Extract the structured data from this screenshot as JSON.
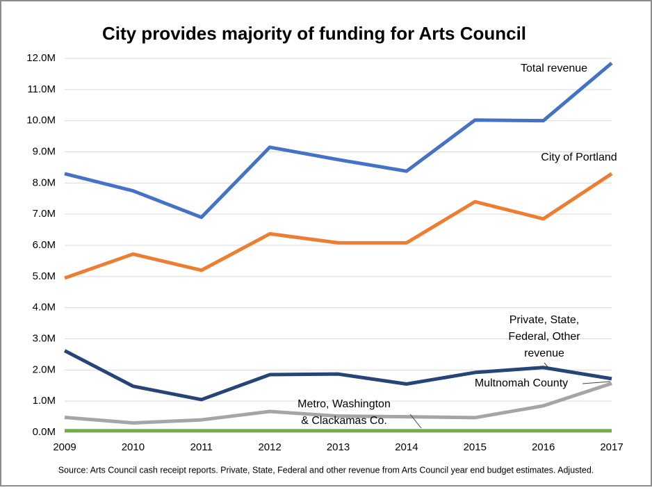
{
  "chart_data": {
    "type": "line",
    "title": "City provides majority of funding for Arts Council",
    "source": "Source: Arts Council cash receipt reports. Private, State, Federal and other revenue from Arts Council year end budget estimates. Adjusted.",
    "x": [
      2009,
      2010,
      2011,
      2012,
      2013,
      2014,
      2015,
      2016,
      2017
    ],
    "xlim": [
      2009,
      2017
    ],
    "xticks": [
      2009,
      2010,
      2011,
      2012,
      2013,
      2014,
      2015,
      2016,
      2017
    ],
    "ylim": [
      0,
      12
    ],
    "yticks": [
      {
        "value": 0,
        "label": "0.0M"
      },
      {
        "value": 1,
        "label": "1.0M"
      },
      {
        "value": 2,
        "label": "2.0M"
      },
      {
        "value": 3,
        "label": "3.0M"
      },
      {
        "value": 4,
        "label": "4.0M"
      },
      {
        "value": 5,
        "label": "5.0M"
      },
      {
        "value": 6,
        "label": "6.0M"
      },
      {
        "value": 7,
        "label": "7.0M"
      },
      {
        "value": 8,
        "label": "8.0M"
      },
      {
        "value": 9,
        "label": "9.0M"
      },
      {
        "value": 10,
        "label": "10.0M"
      },
      {
        "value": 11,
        "label": "11.0M"
      },
      {
        "value": 12,
        "label": "12.0M"
      }
    ],
    "grid": true,
    "series": [
      {
        "name": "Total revenue",
        "color": "#4472c4",
        "values": [
          8.3,
          7.75,
          6.9,
          9.15,
          8.75,
          8.38,
          10.02,
          10.0,
          11.85
        ]
      },
      {
        "name": "City of Portland",
        "color": "#ed7d31",
        "values": [
          4.95,
          5.72,
          5.2,
          6.37,
          6.08,
          6.08,
          7.4,
          6.85,
          8.3
        ]
      },
      {
        "name": "Private, State, Federal, Other revenue",
        "color": "#264478",
        "values": [
          2.62,
          1.48,
          1.05,
          1.85,
          1.87,
          1.55,
          1.92,
          2.08,
          1.72
        ]
      },
      {
        "name": "Multnomah County",
        "color": "#a5a5a5",
        "values": [
          0.48,
          0.3,
          0.4,
          0.67,
          0.52,
          0.5,
          0.47,
          0.85,
          1.57
        ]
      },
      {
        "name": "Metro, Washington & Clackamas Co.",
        "color": "#70ad47",
        "values": [
          0.05,
          0.05,
          0.05,
          0.05,
          0.05,
          0.05,
          0.05,
          0.05,
          0.05
        ]
      }
    ],
    "annotations": [
      {
        "lines": [
          "Total revenue"
        ]
      },
      {
        "lines": [
          "City of Portland"
        ]
      },
      {
        "lines": [
          "Private, State,",
          "Federal, Other",
          "revenue"
        ]
      },
      {
        "lines": [
          "Multnomah County"
        ]
      },
      {
        "lines": [
          "Metro, Washington",
          "& Clackamas Co."
        ]
      }
    ]
  }
}
